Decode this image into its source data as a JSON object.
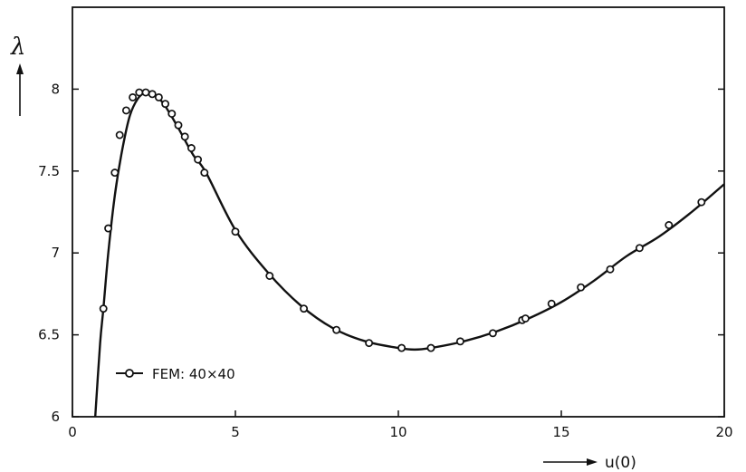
{
  "chart_data": {
    "type": "line",
    "title": "",
    "xlabel": "u(0)",
    "ylabel": "λ",
    "xlim": [
      0,
      20
    ],
    "ylim": [
      6,
      8.5
    ],
    "x_ticks": [
      0,
      5,
      10,
      15,
      20
    ],
    "x_tick_labels": [
      "0",
      "5",
      "10",
      "15",
      "20"
    ],
    "y_ticks": [
      6,
      6.5,
      7,
      7.5,
      8
    ],
    "y_tick_labels": [
      "6",
      "6.5",
      "7",
      "7.5",
      "8"
    ],
    "grid": false,
    "legend_position": "bottom-left",
    "series": [
      {
        "name": "FEM: 40×40",
        "marker": "open-circle",
        "color": "#111111",
        "curve": [
          {
            "x": 0.7,
            "y": 6.0
          },
          {
            "x": 0.85,
            "y": 6.45
          },
          {
            "x": 0.95,
            "y": 6.66
          },
          {
            "x": 1.1,
            "y": 7.0
          },
          {
            "x": 1.3,
            "y": 7.35
          },
          {
            "x": 1.5,
            "y": 7.6
          },
          {
            "x": 1.75,
            "y": 7.83
          },
          {
            "x": 2.0,
            "y": 7.94
          },
          {
            "x": 2.25,
            "y": 7.98
          },
          {
            "x": 2.5,
            "y": 7.97
          },
          {
            "x": 2.8,
            "y": 7.91
          },
          {
            "x": 3.2,
            "y": 7.78
          },
          {
            "x": 3.7,
            "y": 7.6
          },
          {
            "x": 4.1,
            "y": 7.49
          },
          {
            "x": 5.0,
            "y": 7.14
          },
          {
            "x": 6.0,
            "y": 6.88
          },
          {
            "x": 7.0,
            "y": 6.68
          },
          {
            "x": 8.0,
            "y": 6.54
          },
          {
            "x": 9.0,
            "y": 6.46
          },
          {
            "x": 10.0,
            "y": 6.42
          },
          {
            "x": 10.5,
            "y": 6.41
          },
          {
            "x": 11.0,
            "y": 6.42
          },
          {
            "x": 12.0,
            "y": 6.46
          },
          {
            "x": 13.0,
            "y": 6.52
          },
          {
            "x": 14.0,
            "y": 6.6
          },
          {
            "x": 15.0,
            "y": 6.7
          },
          {
            "x": 16.0,
            "y": 6.83
          },
          {
            "x": 17.0,
            "y": 6.98
          },
          {
            "x": 18.0,
            "y": 7.1
          },
          {
            "x": 19.0,
            "y": 7.25
          },
          {
            "x": 20.0,
            "y": 7.42
          }
        ],
        "points": [
          {
            "x": 0.95,
            "y": 6.66
          },
          {
            "x": 1.1,
            "y": 7.15
          },
          {
            "x": 1.3,
            "y": 7.49
          },
          {
            "x": 1.45,
            "y": 7.72
          },
          {
            "x": 1.65,
            "y": 7.87
          },
          {
            "x": 1.85,
            "y": 7.95
          },
          {
            "x": 2.05,
            "y": 7.98
          },
          {
            "x": 2.25,
            "y": 7.98
          },
          {
            "x": 2.45,
            "y": 7.97
          },
          {
            "x": 2.65,
            "y": 7.95
          },
          {
            "x": 2.85,
            "y": 7.91
          },
          {
            "x": 3.05,
            "y": 7.85
          },
          {
            "x": 3.25,
            "y": 7.78
          },
          {
            "x": 3.45,
            "y": 7.71
          },
          {
            "x": 3.65,
            "y": 7.64
          },
          {
            "x": 3.85,
            "y": 7.57
          },
          {
            "x": 4.05,
            "y": 7.49
          },
          {
            "x": 5.0,
            "y": 7.13
          },
          {
            "x": 6.05,
            "y": 6.86
          },
          {
            "x": 7.1,
            "y": 6.66
          },
          {
            "x": 8.1,
            "y": 6.53
          },
          {
            "x": 9.1,
            "y": 6.45
          },
          {
            "x": 10.1,
            "y": 6.42
          },
          {
            "x": 11.0,
            "y": 6.42
          },
          {
            "x": 11.9,
            "y": 6.46
          },
          {
            "x": 12.9,
            "y": 6.51
          },
          {
            "x": 13.8,
            "y": 6.59
          },
          {
            "x": 13.9,
            "y": 6.6
          },
          {
            "x": 14.7,
            "y": 6.69
          },
          {
            "x": 15.6,
            "y": 6.79
          },
          {
            "x": 16.5,
            "y": 6.9
          },
          {
            "x": 17.4,
            "y": 7.03
          },
          {
            "x": 18.3,
            "y": 7.17
          },
          {
            "x": 19.3,
            "y": 7.31
          }
        ]
      }
    ]
  }
}
